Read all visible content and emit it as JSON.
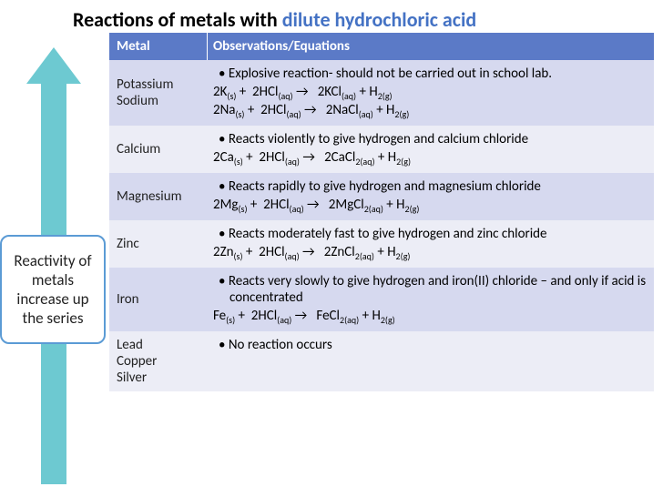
{
  "title": {
    "plain": "Reactions of metals with ",
    "accent": "dilute hydrochloric acid"
  },
  "arrow": {
    "color": "#6dc9d1",
    "label": "Reactivity of metals increase up the series",
    "border_color": "#5b9bd5"
  },
  "table": {
    "header_bg": "#5b7ac7",
    "header_fg": "#ffffff",
    "band_a": "#d6d9ef",
    "band_b": "#ecedf6",
    "columns": [
      "Metal",
      "Observations/Equations"
    ],
    "rows": [
      {
        "metals": [
          "Potassium",
          "Sodium"
        ],
        "bullets": [
          "Explosive reaction- should not be carried out in school lab."
        ],
        "equations_html": [
          "2K<sub>(s)</sub> +  2HCl<sub>(aq)</sub> →   2KCl<sub>(aq)</sub> + H<sub>2(g)</sub>",
          "2Na<sub>(s)</sub> +  2HCl<sub>(aq)</sub> →   2NaCl<sub>(aq)</sub> + H<sub>2(g)</sub>"
        ]
      },
      {
        "metals": [
          "Calcium"
        ],
        "bullets": [
          "Reacts violently to give hydrogen and calcium chloride"
        ],
        "equations_html": [
          "2Ca<sub>(s)</sub> +  2HCl<sub>(aq)</sub> →   2CaCl<sub>2(aq)</sub> + H<sub>2(g)</sub>"
        ]
      },
      {
        "metals": [
          "Magnesium"
        ],
        "bullets": [
          "Reacts rapidly to give hydrogen and magnesium chloride"
        ],
        "equations_html": [
          "2Mg<sub>(s)</sub> +  2HCl<sub>(aq)</sub> →   2MgCl<sub>2(aq)</sub> + H<sub>2(g)</sub>"
        ]
      },
      {
        "metals": [
          "Zinc"
        ],
        "bullets": [
          "Reacts moderately fast to give hydrogen and zinc chloride"
        ],
        "equations_html": [
          "2Zn<sub>(s)</sub> +  2HCl<sub>(aq)</sub> →   2ZnCl<sub>2(aq)</sub> + H<sub>2(g)</sub>"
        ]
      },
      {
        "metals": [
          "Iron"
        ],
        "bullets": [
          "Reacts very slowly to give hydrogen and iron(II) chloride – and only if acid is concentrated"
        ],
        "equations_html": [
          "Fe<sub>(s)</sub> +  2HCl<sub>(aq)</sub> →   FeCl<sub>2(aq)</sub> + H<sub>2(g)</sub>"
        ]
      },
      {
        "metals": [
          "Lead",
          "Copper",
          "Silver"
        ],
        "bullets": [
          "No reaction occurs"
        ],
        "equations_html": []
      }
    ]
  }
}
